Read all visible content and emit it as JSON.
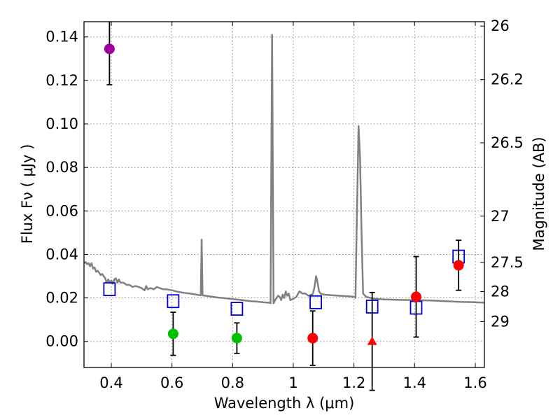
{
  "chart_data": {
    "type": "scatter",
    "xlabel": "Wavelength  λ (μm)",
    "ylabel": "Flux  Fν  ( μJy )",
    "y2label": "Magnitude (AB)",
    "xlim": [
      0.31,
      1.63
    ],
    "ylim": [
      -0.012,
      0.147
    ],
    "xticks": [
      0.4,
      0.6,
      0.8,
      1.0,
      1.2,
      1.4,
      1.6
    ],
    "xtick_labels": [
      "0.4",
      "0.6",
      "0.8",
      "1",
      "1.2",
      "1.4",
      "1.6"
    ],
    "yticks": [
      0.0,
      0.02,
      0.04,
      0.06,
      0.08,
      0.1,
      0.12,
      0.14
    ],
    "ytick_labels": [
      "0.00",
      "0.02",
      "0.04",
      "0.06",
      "0.08",
      "0.10",
      "0.12",
      "0.14"
    ],
    "mag_ticks": [
      {
        "label": "26",
        "flux": 0.145
      },
      {
        "label": "26.2",
        "flux": 0.1204
      },
      {
        "label": "26.5",
        "flux": 0.0913
      },
      {
        "label": "27",
        "flux": 0.0576
      },
      {
        "label": "27.5",
        "flux": 0.0363
      },
      {
        "label": "28",
        "flux": 0.0229
      },
      {
        "label": "29",
        "flux": 0.0091
      }
    ],
    "grid": true,
    "colors": {
      "sed": "#808080",
      "model": "#0000cc",
      "magenta": "#a000a0",
      "green": "#00c000",
      "red": "#ff0000",
      "errorbar": "#000000"
    },
    "sed_model": [
      [
        0.31,
        0.036
      ],
      [
        0.315,
        0.0365
      ],
      [
        0.32,
        0.0355
      ],
      [
        0.325,
        0.036
      ],
      [
        0.33,
        0.0345
      ],
      [
        0.335,
        0.036
      ],
      [
        0.34,
        0.0335
      ],
      [
        0.345,
        0.034
      ],
      [
        0.35,
        0.032
      ],
      [
        0.355,
        0.0325
      ],
      [
        0.36,
        0.0315
      ],
      [
        0.365,
        0.0305
      ],
      [
        0.37,
        0.031
      ],
      [
        0.375,
        0.03
      ],
      [
        0.38,
        0.029
      ],
      [
        0.385,
        0.027
      ],
      [
        0.39,
        0.0285
      ],
      [
        0.395,
        0.027
      ],
      [
        0.4,
        0.028
      ],
      [
        0.405,
        0.0265
      ],
      [
        0.41,
        0.0285
      ],
      [
        0.415,
        0.029
      ],
      [
        0.42,
        0.027
      ],
      [
        0.425,
        0.0285
      ],
      [
        0.43,
        0.027
      ],
      [
        0.44,
        0.027
      ],
      [
        0.45,
        0.026
      ],
      [
        0.46,
        0.026
      ],
      [
        0.47,
        0.025
      ],
      [
        0.48,
        0.0255
      ],
      [
        0.49,
        0.025
      ],
      [
        0.5,
        0.0245
      ],
      [
        0.505,
        0.024
      ],
      [
        0.51,
        0.0235
      ],
      [
        0.515,
        0.0255
      ],
      [
        0.52,
        0.024
      ],
      [
        0.53,
        0.0245
      ],
      [
        0.54,
        0.024
      ],
      [
        0.55,
        0.025
      ],
      [
        0.56,
        0.0245
      ],
      [
        0.57,
        0.024
      ],
      [
        0.58,
        0.024
      ],
      [
        0.6,
        0.0235
      ],
      [
        0.62,
        0.0228
      ],
      [
        0.64,
        0.0223
      ],
      [
        0.66,
        0.022
      ],
      [
        0.68,
        0.0215
      ],
      [
        0.695,
        0.0212
      ],
      [
        0.698,
        0.0468
      ],
      [
        0.701,
        0.0212
      ],
      [
        0.72,
        0.0208
      ],
      [
        0.75,
        0.0202
      ],
      [
        0.78,
        0.0198
      ],
      [
        0.8,
        0.0195
      ],
      [
        0.82,
        0.0192
      ],
      [
        0.84,
        0.0188
      ],
      [
        0.86,
        0.0185
      ],
      [
        0.88,
        0.0183
      ],
      [
        0.9,
        0.018
      ],
      [
        0.92,
        0.0178
      ],
      [
        0.925,
        0.0176
      ],
      [
        0.93,
        0.141
      ],
      [
        0.935,
        0.0175
      ],
      [
        0.94,
        0.019
      ],
      [
        0.95,
        0.021
      ],
      [
        0.955,
        0.0205
      ],
      [
        0.96,
        0.019
      ],
      [
        0.965,
        0.0215
      ],
      [
        0.97,
        0.02
      ],
      [
        0.975,
        0.023
      ],
      [
        0.98,
        0.021
      ],
      [
        0.985,
        0.022
      ],
      [
        0.99,
        0.019
      ],
      [
        1.0,
        0.0195
      ],
      [
        1.01,
        0.0205
      ],
      [
        1.02,
        0.023
      ],
      [
        1.03,
        0.022
      ],
      [
        1.04,
        0.022
      ],
      [
        1.05,
        0.021
      ],
      [
        1.06,
        0.0215
      ],
      [
        1.065,
        0.022
      ],
      [
        1.07,
        0.025
      ],
      [
        1.075,
        0.03
      ],
      [
        1.08,
        0.027
      ],
      [
        1.085,
        0.023
      ],
      [
        1.09,
        0.022
      ],
      [
        1.1,
        0.0215
      ],
      [
        1.12,
        0.0213
      ],
      [
        1.15,
        0.021
      ],
      [
        1.18,
        0.0208
      ],
      [
        1.2,
        0.0205
      ],
      [
        1.205,
        0.02
      ],
      [
        1.21,
        0.06
      ],
      [
        1.215,
        0.099
      ],
      [
        1.22,
        0.085
      ],
      [
        1.225,
        0.05
      ],
      [
        1.23,
        0.022
      ],
      [
        1.24,
        0.0205
      ],
      [
        1.26,
        0.0198
      ],
      [
        1.28,
        0.0195
      ],
      [
        1.3,
        0.0193
      ],
      [
        1.35,
        0.0191
      ],
      [
        1.4,
        0.019
      ],
      [
        1.45,
        0.0188
      ],
      [
        1.5,
        0.0185
      ],
      [
        1.55,
        0.0182
      ],
      [
        1.6,
        0.018
      ],
      [
        1.63,
        0.0178
      ]
    ],
    "model_points": [
      {
        "x": 0.394,
        "y": 0.024
      },
      {
        "x": 0.604,
        "y": 0.0185
      },
      {
        "x": 0.814,
        "y": 0.015
      },
      {
        "x": 1.074,
        "y": 0.018
      },
      {
        "x": 1.26,
        "y": 0.016
      },
      {
        "x": 1.405,
        "y": 0.0155
      },
      {
        "x": 1.545,
        "y": 0.039
      }
    ],
    "observed_points": [
      {
        "x": 0.394,
        "y": 0.1345,
        "err": 0.0165,
        "color": "magenta",
        "marker": "circle"
      },
      {
        "x": 0.604,
        "y": 0.0035,
        "err": 0.0099,
        "color": "green",
        "marker": "circle"
      },
      {
        "x": 0.814,
        "y": 0.0015,
        "err": 0.007,
        "color": "green",
        "marker": "circle"
      },
      {
        "x": 1.064,
        "y": 0.0015,
        "err": 0.0125,
        "color": "red",
        "marker": "circle"
      },
      {
        "x": 1.26,
        "y": 0.0,
        "err": 0.0225,
        "color": "red",
        "marker": "triangle"
      },
      {
        "x": 1.405,
        "y": 0.0205,
        "err": 0.0185,
        "color": "red",
        "marker": "circle"
      },
      {
        "x": 1.545,
        "y": 0.035,
        "err": 0.0115,
        "color": "red",
        "marker": "circle"
      }
    ]
  }
}
